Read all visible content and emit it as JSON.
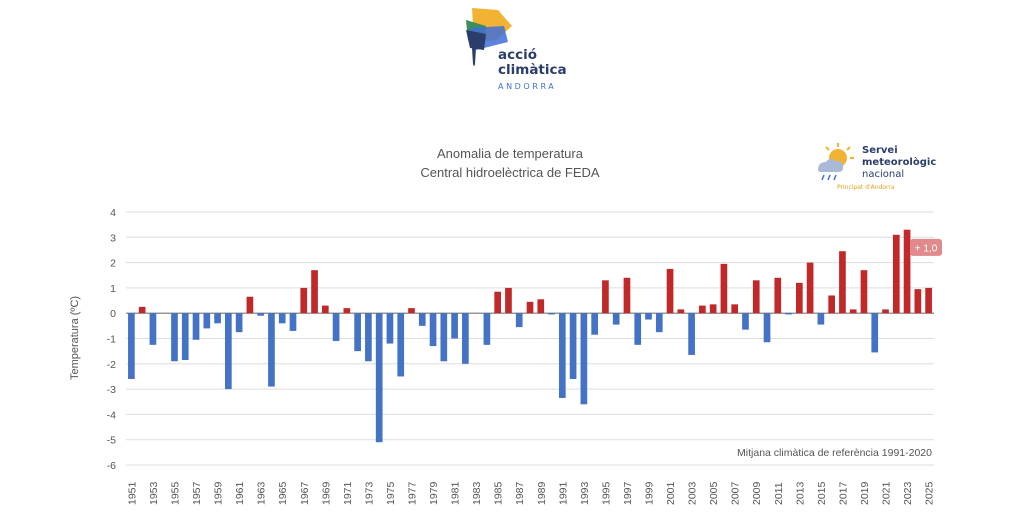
{
  "logo": {
    "line1": "acció",
    "line2": "climàtica",
    "line3": "ANDORRA",
    "colors": [
      "#f2b233",
      "#3c8f5a",
      "#2b3d6b",
      "#3f6fd8"
    ]
  },
  "smn_logo": {
    "line1": "Servei",
    "line2": "meteorològic",
    "line3": "nacional",
    "line4": "Principat d'Andorra"
  },
  "chart_data": {
    "type": "bar",
    "title": "Anomalia de temperatura",
    "subtitle": "Central hidroelèctrica de FEDA",
    "xlabel": "",
    "ylabel": "Temperatura (ºC)",
    "ylim": [
      -6,
      4
    ],
    "yticks": [
      4,
      3,
      2,
      1,
      0,
      -1,
      -2,
      -3,
      -4,
      -5,
      -6
    ],
    "grid": true,
    "positive_color": "#c0282a",
    "negative_color": "#4472c4",
    "annotation": "Mitjana climàtica de referència 1991-2020",
    "last_value_label": "+ 1,0",
    "categories": [
      1951,
      1952,
      1953,
      1954,
      1955,
      1956,
      1957,
      1958,
      1959,
      1960,
      1961,
      1962,
      1963,
      1964,
      1965,
      1966,
      1967,
      1968,
      1969,
      1970,
      1971,
      1972,
      1973,
      1974,
      1975,
      1976,
      1977,
      1978,
      1979,
      1980,
      1981,
      1982,
      1983,
      1984,
      1985,
      1986,
      1987,
      1988,
      1989,
      1990,
      1991,
      1992,
      1993,
      1994,
      1995,
      1996,
      1997,
      1998,
      1999,
      2000,
      2001,
      2002,
      2003,
      2004,
      2005,
      2006,
      2007,
      2008,
      2009,
      2010,
      2011,
      2012,
      2013,
      2014,
      2015,
      2016,
      2017,
      2018,
      2019,
      2020,
      2021,
      2022,
      2023,
      2024,
      2025
    ],
    "tick_labels": [
      1951,
      1953,
      1955,
      1957,
      1959,
      1961,
      1963,
      1965,
      1967,
      1969,
      1971,
      1973,
      1975,
      1977,
      1979,
      1981,
      1983,
      1985,
      1987,
      1989,
      1991,
      1993,
      1995,
      1997,
      1999,
      2001,
      2003,
      2005,
      2007,
      2009,
      2011,
      2013,
      2015,
      2017,
      2019,
      2021,
      2023,
      2025
    ],
    "values": [
      -2.6,
      0.25,
      -1.25,
      0,
      -1.9,
      -1.85,
      -1.05,
      -0.6,
      -0.4,
      -3.0,
      -0.75,
      0.65,
      -0.1,
      -2.9,
      -0.4,
      -0.7,
      1.0,
      1.7,
      0.3,
      -1.1,
      0.2,
      -1.5,
      -1.9,
      -5.1,
      -1.2,
      -2.5,
      0.2,
      -0.5,
      -1.3,
      -1.9,
      -1.0,
      -2.0,
      0,
      -1.25,
      0.85,
      1.0,
      -0.55,
      0.45,
      0.55,
      -0.05,
      -3.35,
      -2.6,
      -3.6,
      -0.85,
      1.3,
      -0.45,
      1.4,
      -1.25,
      -0.25,
      -0.75,
      1.75,
      0.15,
      -1.65,
      0.3,
      0.35,
      1.95,
      0.35,
      -0.65,
      1.3,
      -1.15,
      1.4,
      -0.05,
      1.2,
      2.0,
      -0.45,
      0.7,
      2.45,
      0.15,
      1.7,
      -1.55,
      0.15,
      3.1,
      3.3,
      0.95,
      1.0
    ]
  }
}
